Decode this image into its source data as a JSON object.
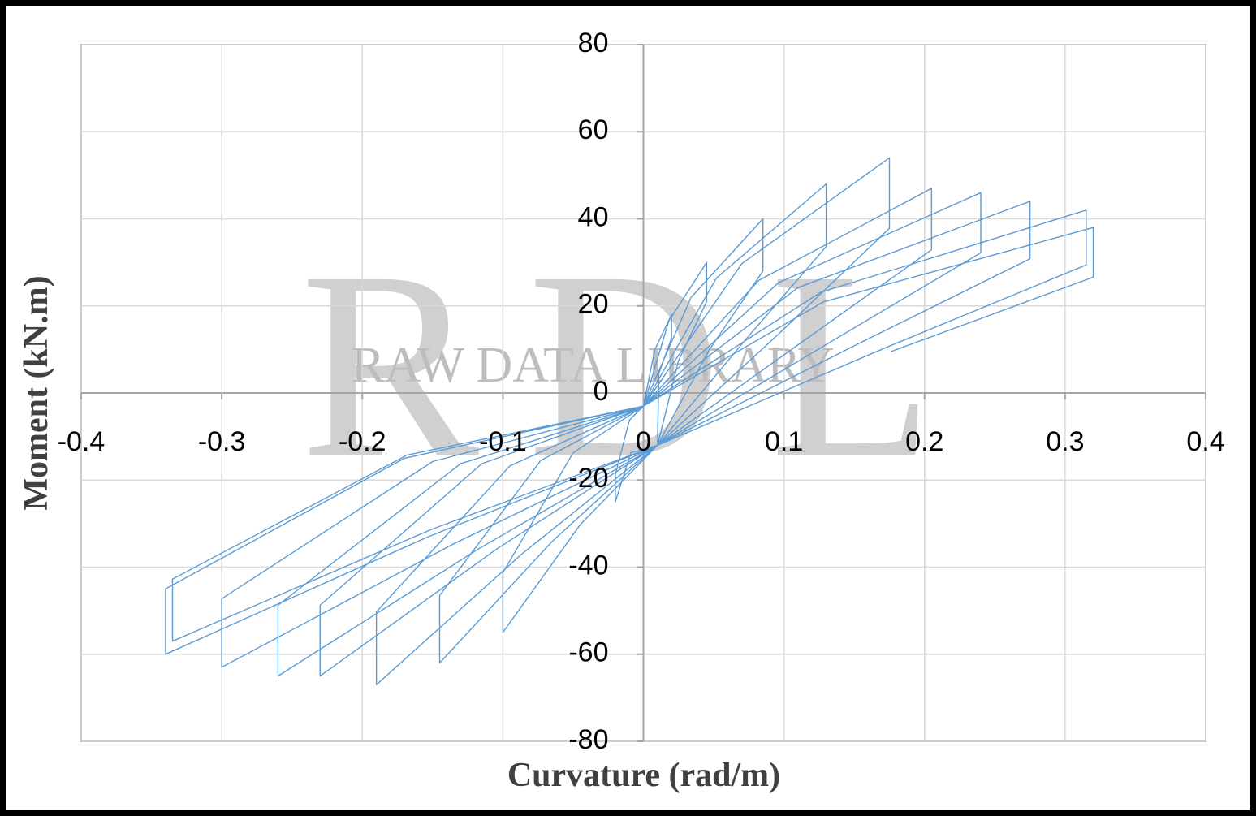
{
  "chart_data": {
    "type": "line",
    "x_label": "Curvature (rad/m)",
    "y_label": "Moment (kN.m)",
    "watermark": {
      "logo": "RDL",
      "text": "RAW DATA LIBRARY"
    },
    "xlim": [
      -0.4,
      0.4
    ],
    "xticks": [
      -0.4,
      -0.3,
      -0.2,
      -0.1,
      0,
      0.1,
      0.2,
      0.3,
      0.4
    ],
    "ylim": [
      -80,
      80
    ],
    "yticks": [
      80,
      60,
      40,
      20,
      0,
      -20,
      -40,
      -60,
      -80
    ],
    "grid": true,
    "x": [
      0,
      0.008,
      0.02,
      0.02,
      0.011,
      0.01,
      -0.009,
      -0.02,
      -0.02,
      -0.01,
      0,
      0.018,
      0.045,
      0.045,
      0.025,
      0.01,
      -0.045,
      -0.1,
      -0.1,
      -0.05,
      0,
      0.034,
      0.085,
      0.085,
      0.047,
      0.01,
      -0.065,
      -0.145,
      -0.145,
      -0.073,
      0,
      0.052,
      0.13,
      0.13,
      0.072,
      0.01,
      -0.086,
      -0.19,
      -0.19,
      -0.095,
      0,
      0.07,
      0.175,
      0.175,
      0.096,
      0.01,
      -0.104,
      -0.23,
      -0.23,
      -0.115,
      0,
      0.082,
      0.205,
      0.205,
      0.113,
      0.01,
      -0.117,
      -0.26,
      -0.26,
      -0.13,
      0,
      0.096,
      0.24,
      0.24,
      0.132,
      0.01,
      -0.135,
      -0.3,
      -0.3,
      -0.15,
      0,
      0.11,
      0.275,
      0.275,
      0.151,
      0.01,
      -0.153,
      -0.34,
      -0.34,
      -0.17,
      0,
      0.126,
      0.315,
      0.315,
      0.173,
      0.01,
      -0.151,
      -0.335,
      -0.335,
      -0.168,
      0,
      0.128,
      0.32,
      0.32,
      0.176
    ],
    "series": [
      {
        "color": "#5b9bd5",
        "values": [
          -3,
          9.9,
          18,
          12.6,
          4.5,
          -12,
          -13.75,
          -25,
          -18.75,
          -6.25,
          -3,
          16.5,
          30,
          21,
          7.5,
          -12,
          -30.25,
          -55,
          -41.25,
          -13.75,
          -3,
          22,
          40,
          28,
          10,
          -12,
          -34.1,
          -62,
          -46.5,
          -15.5,
          -3,
          26.4,
          48,
          33.6,
          12,
          -12,
          -36.85,
          -67,
          -50.25,
          -16.75,
          -3,
          29.7,
          54,
          37.8,
          13.5,
          -12,
          -35.75,
          -65,
          -48.75,
          -16.25,
          -3,
          25.85,
          47,
          32.9,
          11.75,
          -12,
          -35.75,
          -65,
          -48.75,
          -16.25,
          -3,
          25.3,
          46,
          32.2,
          11.5,
          -12,
          -34.65,
          -63,
          -47.25,
          -15.75,
          -3,
          24.2,
          44,
          30.8,
          11,
          -12,
          -33,
          -60,
          -45,
          -15,
          -3,
          23.1,
          42,
          29.4,
          10.5,
          -12,
          -31.35,
          -57,
          -42.75,
          -14.25,
          -3,
          20.9,
          38,
          26.6,
          9.5
        ]
      }
    ]
  }
}
